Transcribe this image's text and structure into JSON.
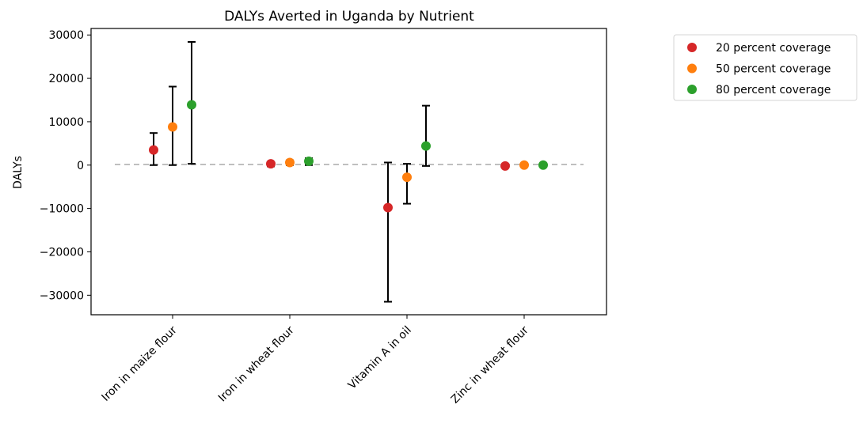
{
  "chart_data": {
    "type": "scatter",
    "title": "DALYs Averted in Uganda by Nutrient",
    "xlabel": "",
    "ylabel": "DALYs",
    "categories": [
      "Iron in maize flour",
      "Iron in wheat flour",
      "Vitamin A in oil",
      "Zinc in wheat flour"
    ],
    "ylim": [
      -34500,
      31500
    ],
    "yticks": [
      -30000,
      -20000,
      -10000,
      0,
      10000,
      20000,
      30000
    ],
    "ytick_labels": [
      "−30000",
      "−20000",
      "−10000",
      "0",
      "10000",
      "20000",
      "30000"
    ],
    "reference_line": 0,
    "grid": false,
    "legend_position": "outside-right-top",
    "series": [
      {
        "name": "20 percent coverage",
        "color": "#d62728",
        "values": [
          3500,
          300,
          -9800,
          -200
        ],
        "err_low": [
          0,
          -300,
          -31500,
          -500
        ],
        "err_high": [
          7400,
          700,
          600,
          100
        ]
      },
      {
        "name": "50 percent coverage",
        "color": "#ff7f0e",
        "values": [
          8800,
          600,
          -2800,
          0
        ],
        "err_low": [
          0,
          0,
          -8900,
          -300
        ],
        "err_high": [
          18100,
          1100,
          300,
          300
        ]
      },
      {
        "name": "80 percent coverage",
        "color": "#2ca02c",
        "values": [
          13900,
          900,
          4400,
          0
        ],
        "err_low": [
          300,
          0,
          -200,
          -200
        ],
        "err_high": [
          28400,
          1600,
          13700,
          200
        ]
      }
    ]
  }
}
